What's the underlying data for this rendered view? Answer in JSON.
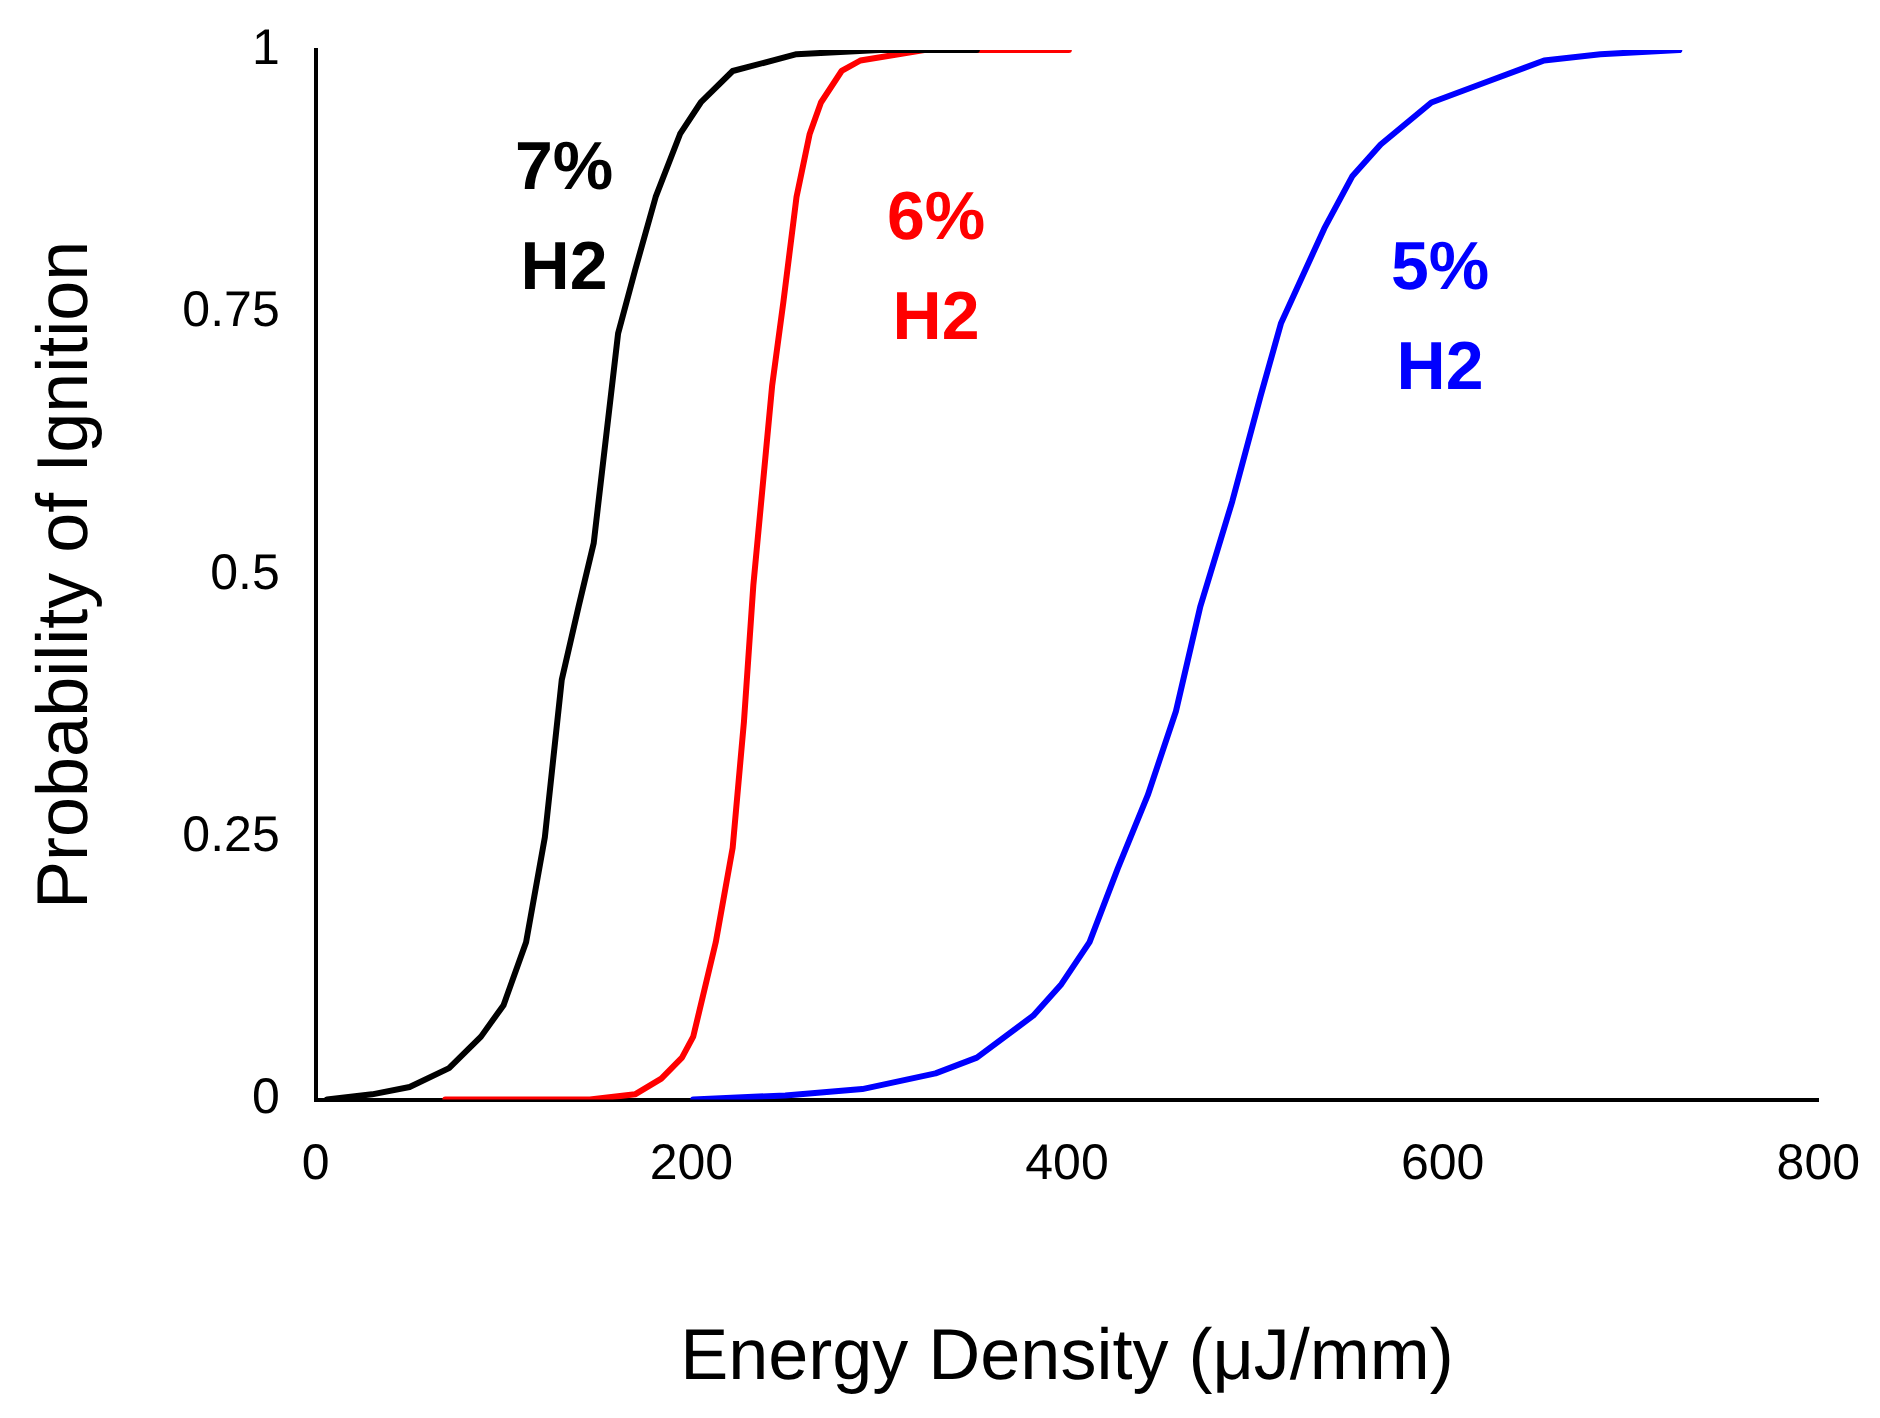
{
  "chart_data": {
    "type": "line",
    "xlabel": "Energy Density (μJ/mm)",
    "ylabel": "Probability of Ignition",
    "xlim": [
      0,
      800
    ],
    "xticks": [
      0,
      200,
      400,
      600,
      800
    ],
    "ylim": [
      0,
      1
    ],
    "yticks": [
      0,
      0.25,
      0.5,
      0.75,
      1
    ],
    "grid": false,
    "legend": false,
    "marker": "none",
    "line_style": "solid",
    "series": [
      {
        "name": "7% H2",
        "color": "#000000",
        "x": [
          6,
          30,
          50,
          71,
          88,
          100,
          112,
          122,
          131,
          140,
          148,
          161,
          170,
          181,
          194,
          205,
          222,
          256,
          300,
          352
        ],
        "values": [
          0,
          0.005,
          0.012,
          0.03,
          0.06,
          0.09,
          0.15,
          0.25,
          0.4,
          0.47,
          0.53,
          0.73,
          0.79,
          0.86,
          0.92,
          0.95,
          0.98,
          0.996,
          1,
          1
        ]
      },
      {
        "name": "6% H2",
        "color": "#ff0000",
        "x": [
          69,
          146,
          170,
          184,
          195,
          201,
          213,
          222,
          228,
          233,
          243,
          249,
          256,
          263,
          269,
          280,
          290,
          324,
          401
        ],
        "values": [
          0,
          0,
          0.005,
          0.02,
          0.04,
          0.06,
          0.15,
          0.24,
          0.36,
          0.49,
          0.68,
          0.76,
          0.86,
          0.92,
          0.95,
          0.98,
          0.99,
          1,
          1
        ]
      },
      {
        "name": "5% H2",
        "color": "#0000ff",
        "x": [
          201,
          250,
          291,
          330,
          352,
          382,
          397,
          412,
          427,
          443,
          458,
          471,
          488,
          503,
          514,
          537,
          552,
          567,
          594,
          624,
          654,
          684,
          726
        ],
        "values": [
          0,
          0.004,
          0.01,
          0.025,
          0.04,
          0.08,
          0.11,
          0.15,
          0.22,
          0.29,
          0.37,
          0.47,
          0.57,
          0.67,
          0.74,
          0.83,
          0.88,
          0.91,
          0.95,
          0.97,
          0.99,
          0.996,
          1
        ]
      }
    ]
  }
}
